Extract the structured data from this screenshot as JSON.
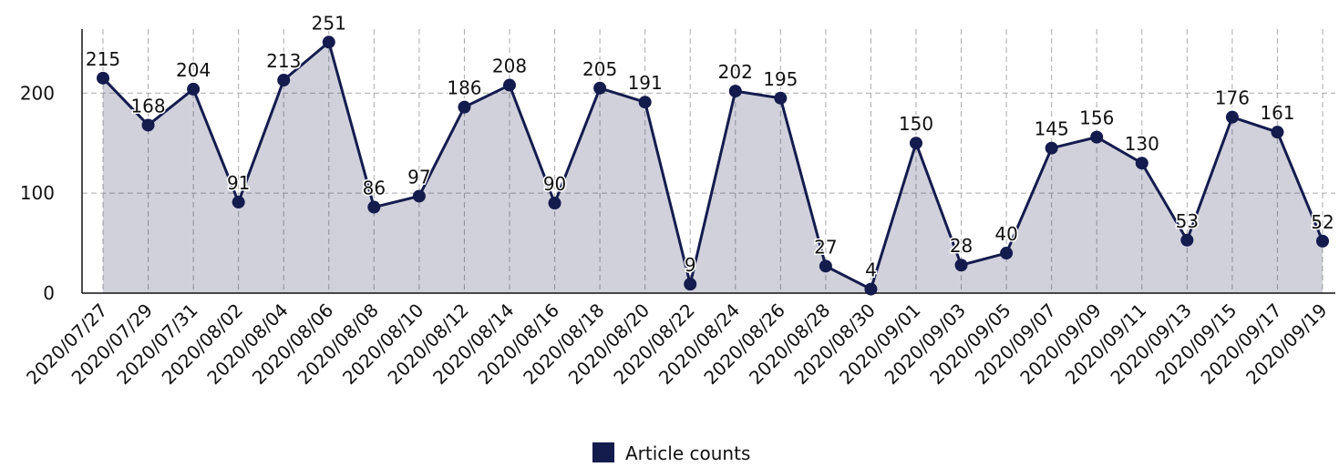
{
  "chart_data": {
    "type": "line",
    "categories": [
      "2020/07/27",
      "2020/07/29",
      "2020/07/31",
      "2020/08/02",
      "2020/08/04",
      "2020/08/06",
      "2020/08/08",
      "2020/08/10",
      "2020/08/12",
      "2020/08/14",
      "2020/08/16",
      "2020/08/18",
      "2020/08/20",
      "2020/08/22",
      "2020/08/24",
      "2020/08/26",
      "2020/08/28",
      "2020/08/30",
      "2020/09/01",
      "2020/09/03",
      "2020/09/05",
      "2020/09/07",
      "2020/09/09",
      "2020/09/11",
      "2020/09/13",
      "2020/09/15",
      "2020/09/17",
      "2020/09/19"
    ],
    "series": [
      {
        "name": "Article counts",
        "color": "#141b4d",
        "values": [
          215,
          168,
          204,
          91,
          213,
          251,
          86,
          97,
          186,
          208,
          90,
          205,
          191,
          9,
          202,
          195,
          27,
          4,
          150,
          28,
          40,
          145,
          156,
          130,
          53,
          176,
          161,
          52
        ]
      }
    ],
    "ylim": [
      0,
      264
    ],
    "yticks": [
      0,
      100,
      200
    ],
    "grid": true,
    "area": true,
    "legend": "bottom"
  }
}
